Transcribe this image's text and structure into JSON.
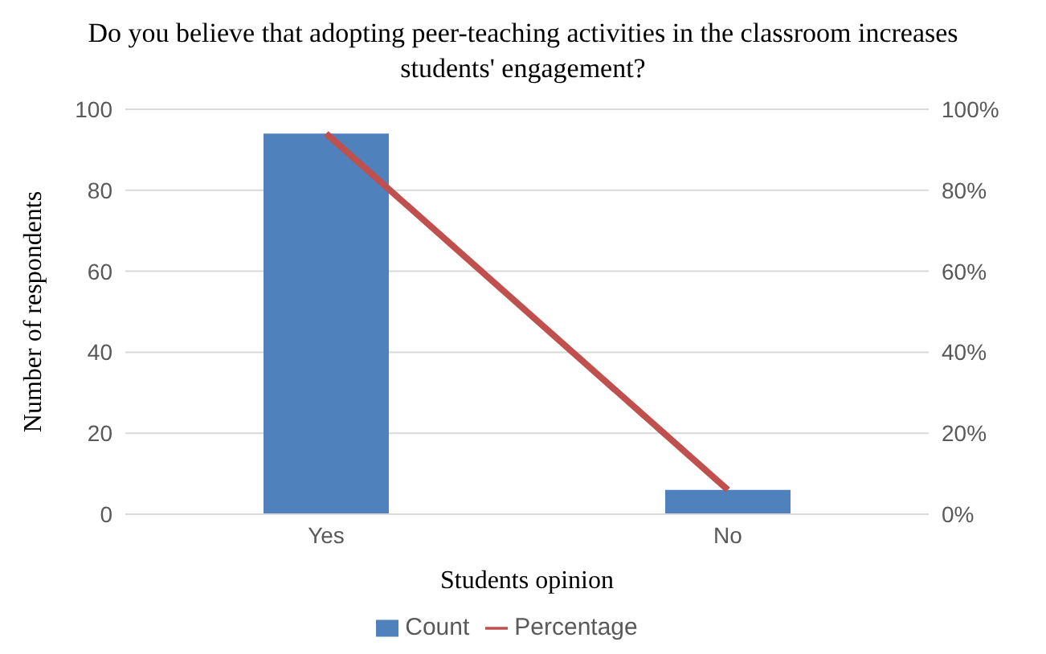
{
  "chart_data": {
    "type": "bar",
    "title": "Do you believe that adopting peer-teaching activities in the classroom increases students' engagement?",
    "xlabel": "Students opinion",
    "ylabel": "Number of respondents",
    "categories": [
      "Yes",
      "No"
    ],
    "series": [
      {
        "name": "Count",
        "color": "#4f81bd",
        "values": [
          94,
          6
        ]
      },
      {
        "name": "Percentage",
        "type": "line",
        "axis": "y2",
        "color": "#c0504d",
        "values": [
          94,
          6
        ]
      }
    ],
    "ylim": [
      0,
      100
    ],
    "yticks": [
      0,
      20,
      40,
      60,
      80,
      100
    ],
    "y2lim": [
      0,
      100
    ],
    "y2ticks": [
      {
        "value": 0,
        "label": "0%"
      },
      {
        "value": 20,
        "label": "20%"
      },
      {
        "value": 40,
        "label": "40%"
      },
      {
        "value": 60,
        "label": "60%"
      },
      {
        "value": 80,
        "label": "80%"
      },
      {
        "value": 100,
        "label": "100%"
      }
    ],
    "grid": "y",
    "legend": "bottom",
    "marker": "none"
  }
}
